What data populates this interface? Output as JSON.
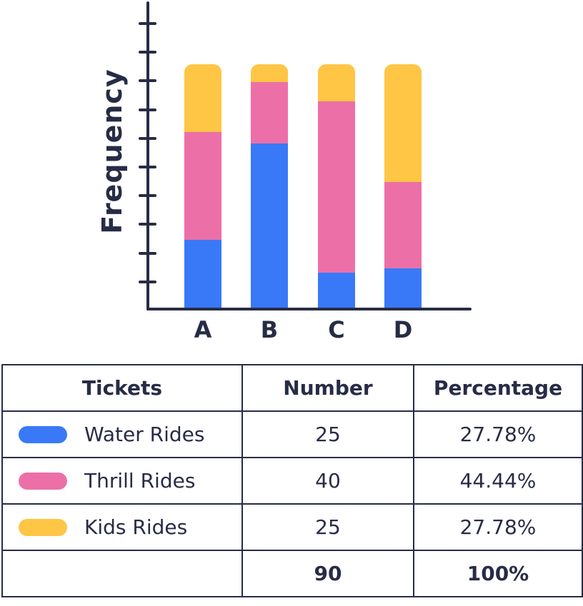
{
  "colors": {
    "water": "#3979F8",
    "thrill": "#ED6FA7",
    "kids": "#FFC545",
    "navy": "#272C46",
    "background": "#FFFFFF"
  },
  "chart_data": {
    "type": "bar",
    "stacked": true,
    "title": "",
    "xlabel": "",
    "ylabel": "Frequency",
    "categories": [
      "A",
      "B",
      "C",
      "D"
    ],
    "series": [
      {
        "name": "Water Rides",
        "color_key": "water",
        "values_pct_of_bar": [
          27.78,
          67.5,
          14.5,
          16.0
        ]
      },
      {
        "name": "Thrill Rides",
        "color_key": "thrill",
        "values_pct_of_bar": [
          44.44,
          25.2,
          70.4,
          35.5
        ]
      },
      {
        "name": "Kids Rides",
        "color_key": "kids",
        "values_pct_of_bar": [
          27.78,
          7.3,
          15.1,
          48.5
        ]
      }
    ],
    "y_axis": {
      "tick_count": 10,
      "tick_labels_visible": false
    },
    "x_axis": {
      "tick_labels_visible": true
    },
    "grid": false,
    "legend_position": "table-below"
  },
  "table": {
    "headers": [
      "Tickets",
      "Number",
      "Percentage"
    ],
    "rows": [
      {
        "label": "Water Rides",
        "swatch": "water",
        "number": "25",
        "percentage": "27.78%"
      },
      {
        "label": "Thrill Rides",
        "swatch": "thrill",
        "number": "40",
        "percentage": "44.44%"
      },
      {
        "label": "Kids Rides",
        "swatch": "kids",
        "number": "25",
        "percentage": "27.78%"
      }
    ],
    "total_row": {
      "label": "",
      "number": "90",
      "percentage": "100%"
    }
  }
}
